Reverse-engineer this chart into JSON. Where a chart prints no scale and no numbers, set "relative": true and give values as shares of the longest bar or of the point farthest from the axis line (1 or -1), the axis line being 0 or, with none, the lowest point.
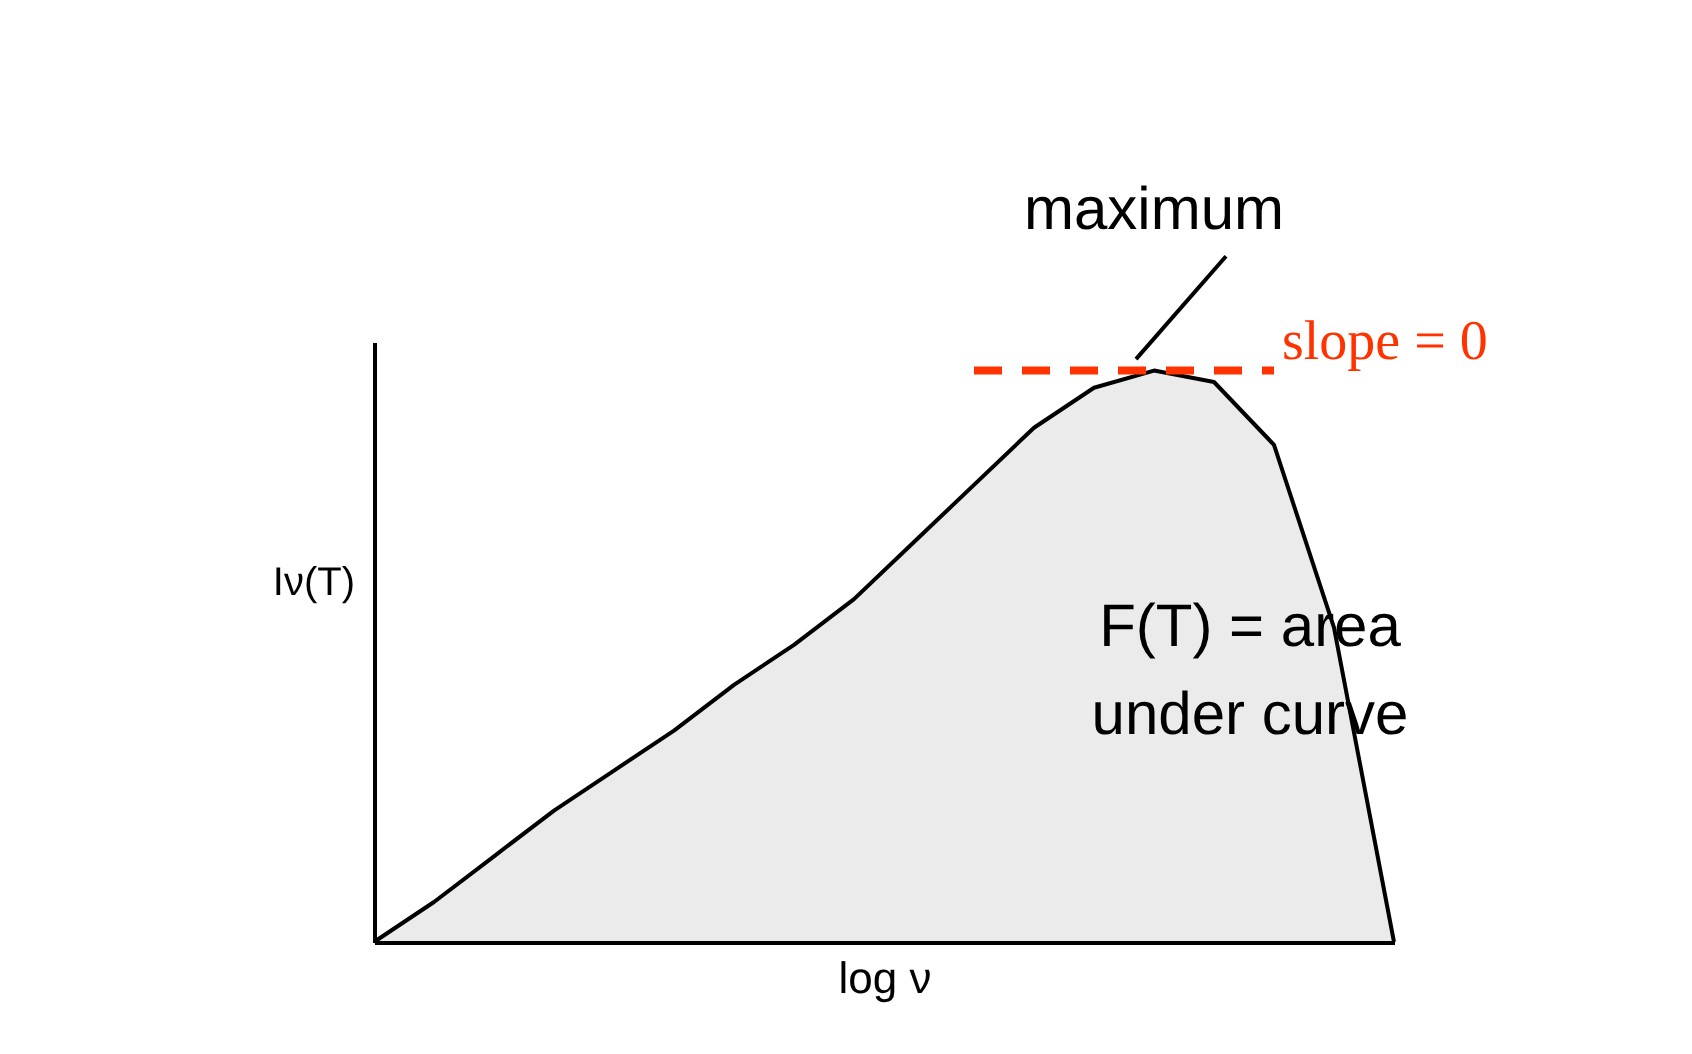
{
  "chart_data": {
    "type": "area",
    "relative": true,
    "xlabel": "log ν",
    "ylabel": "Iν(T)",
    "tick_labels": false,
    "categories": [
      null,
      null,
      null,
      null,
      null,
      null,
      null,
      null,
      null,
      null,
      null,
      null,
      null,
      null,
      null,
      null,
      null,
      null
    ],
    "series": [
      {
        "color": "#000000",
        "values": [
          0,
          0.07,
          0.15,
          0.23,
          0.3,
          0.37,
          0.45,
          0.52,
          0.6,
          0.7,
          0.8,
          0.9,
          0.97,
          1.0,
          0.98,
          0.87,
          0.55,
          0
        ]
      }
    ],
    "ref_lines": [
      {
        "axis": "y",
        "value": 1,
        "color": "#ff3300",
        "line_style": "dashed"
      }
    ],
    "annotations": [
      "maximum",
      "slope = 0",
      "F(T) = area under curve"
    ]
  }
}
